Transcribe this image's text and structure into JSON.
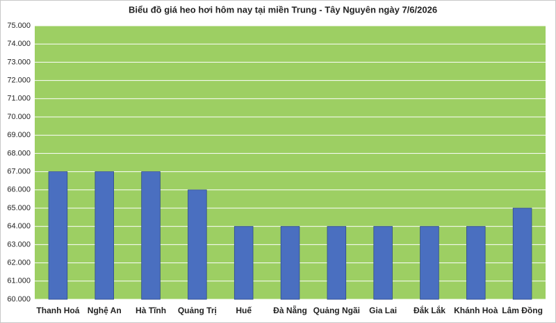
{
  "chart_data": {
    "type": "bar",
    "title": "Biểu đồ giá heo hơi hôm nay tại miền Trung - Tây Nguyên ngày 7/6/2026",
    "categories": [
      "Thanh Hoá",
      "Nghệ An",
      "Hà Tĩnh",
      "Quảng Trị",
      "Huế",
      "Đà Nẵng",
      "Quảng Ngãi",
      "Gia Lai",
      "Đắk Lắk",
      "Khánh Hoà",
      "Lâm Đồng"
    ],
    "values": [
      67000,
      67000,
      67000,
      66000,
      64000,
      64000,
      64000,
      64000,
      64000,
      64000,
      65000
    ],
    "color": "#4a6fc0",
    "ylim": [
      60000,
      75000
    ],
    "yticks": [
      {
        "value": 60000,
        "label": "60.000"
      },
      {
        "value": 61000,
        "label": "61.000"
      },
      {
        "value": 62000,
        "label": "62.000"
      },
      {
        "value": 63000,
        "label": "63.000"
      },
      {
        "value": 64000,
        "label": "64.000"
      },
      {
        "value": 65000,
        "label": "65.000"
      },
      {
        "value": 66000,
        "label": "66.000"
      },
      {
        "value": 67000,
        "label": "67.000"
      },
      {
        "value": 68000,
        "label": "68.000"
      },
      {
        "value": 69000,
        "label": "69.000"
      },
      {
        "value": 70000,
        "label": "70.000"
      },
      {
        "value": 71000,
        "label": "71.000"
      },
      {
        "value": 72000,
        "label": "72.000"
      },
      {
        "value": 73000,
        "label": "73.000"
      },
      {
        "value": 74000,
        "label": "74.000"
      },
      {
        "value": 75000,
        "label": "75.000"
      }
    ],
    "grid": true,
    "plot_background": "#9dcf63"
  }
}
